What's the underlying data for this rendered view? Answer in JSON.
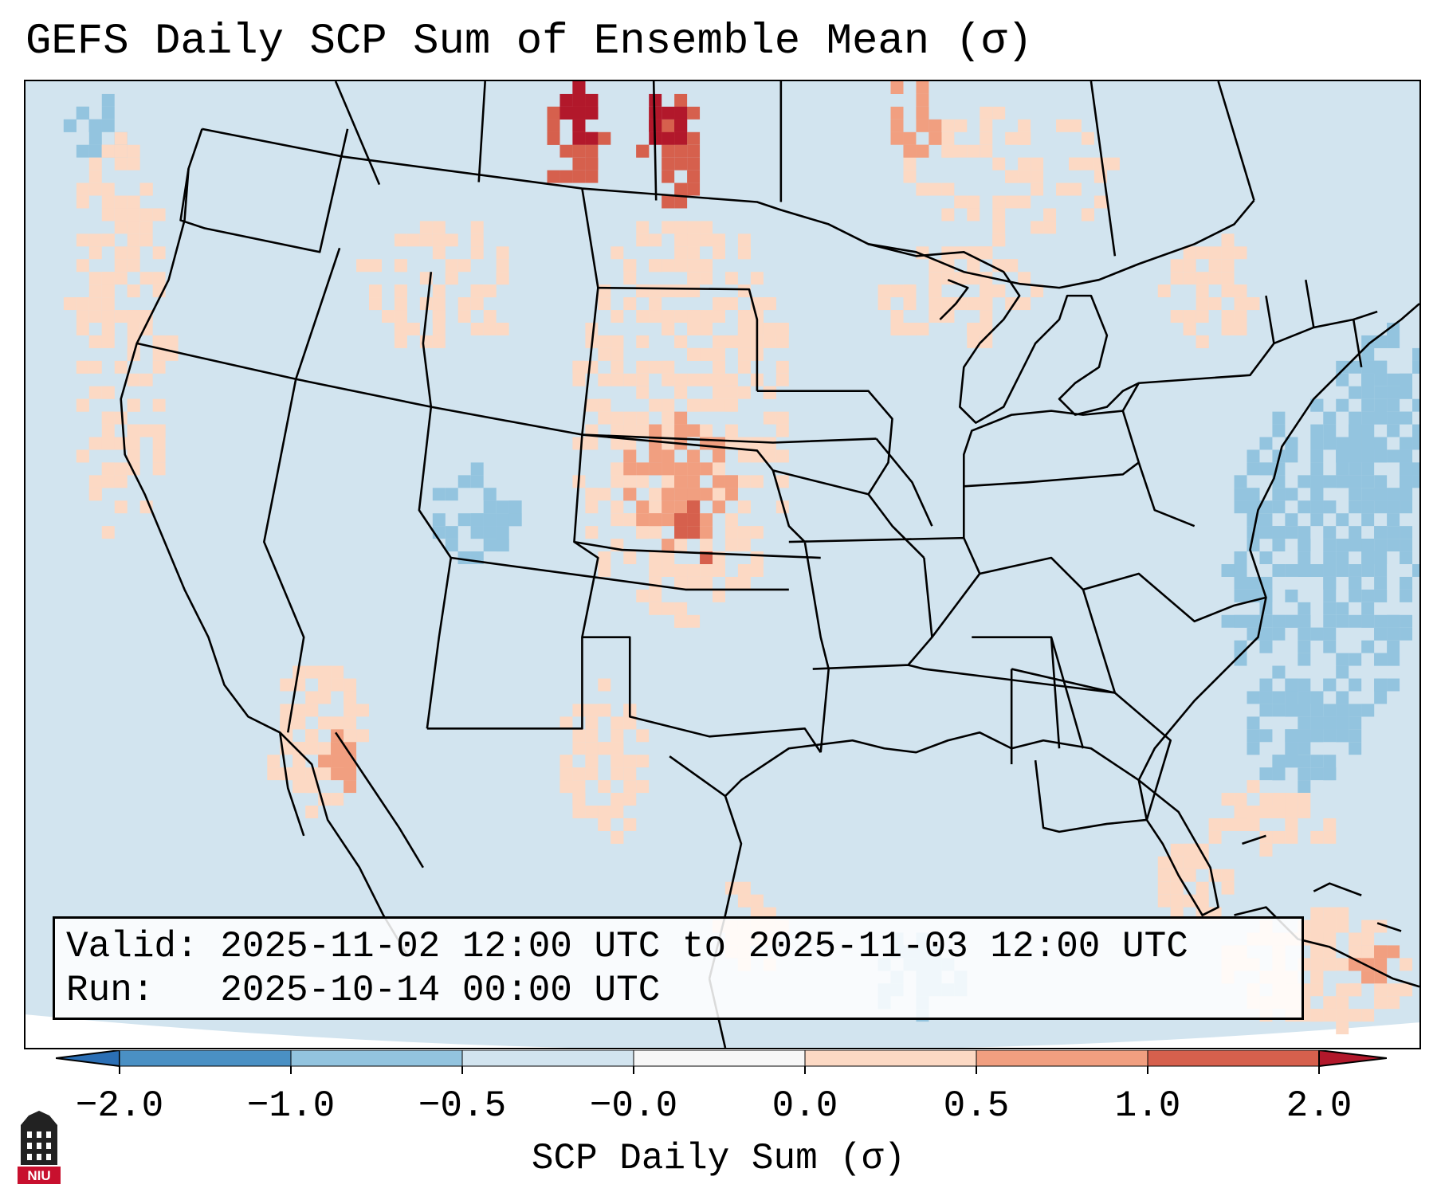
{
  "title": "GEFS Daily SCP Sum of Ensemble Mean (σ)",
  "info": {
    "valid_line": "Valid: 2025-11-02 12:00 UTC to 2025-11-03 12:00 UTC",
    "run_line": "Run:   2025-10-14 00:00 UTC"
  },
  "colorbar": {
    "label": "SCP Daily Sum (σ)",
    "ticks": [
      "−2.0",
      "−1.0",
      "−0.5",
      "−0.0",
      "0.0",
      "0.5",
      "1.0",
      "2.0"
    ],
    "colors": [
      "#4a90c4",
      "#93c4df",
      "#d2e4ef",
      "#f7f7f7",
      "#fcd9c4",
      "#f19f80",
      "#d6604d",
      "#b2182b"
    ]
  },
  "logo": {
    "text": "NIU",
    "color": "#c8102e"
  }
}
